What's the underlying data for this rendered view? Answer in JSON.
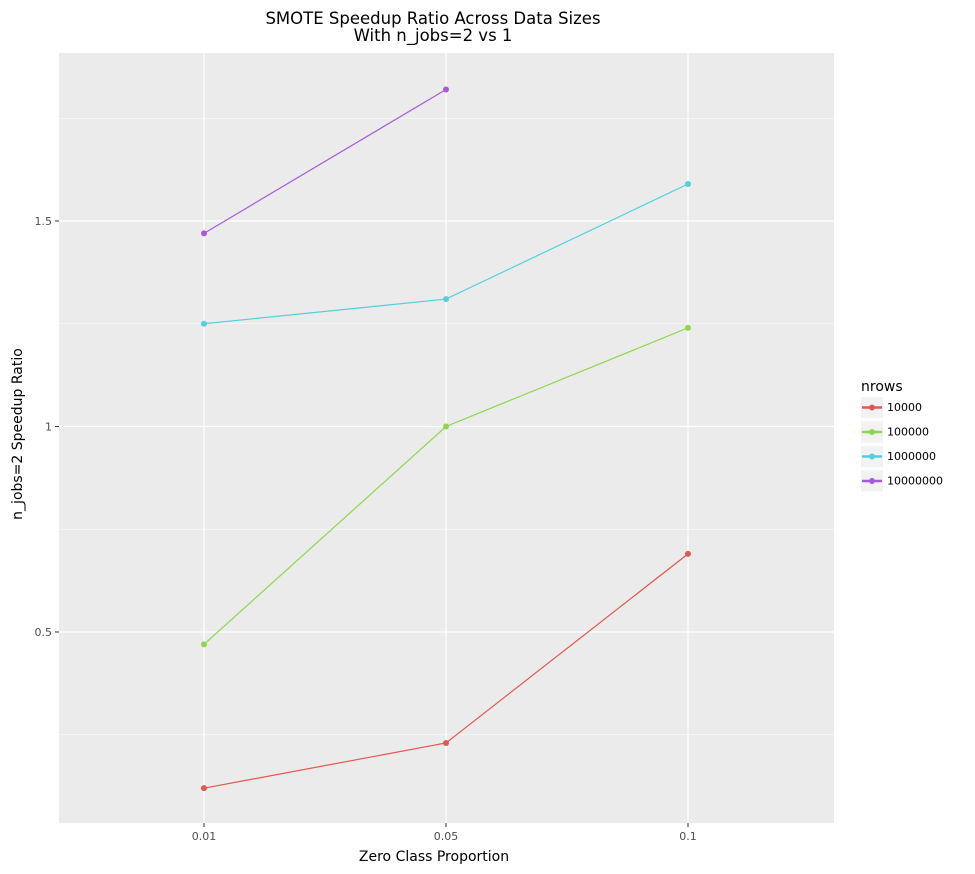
{
  "chart_data": {
    "type": "line",
    "title": "SMOTE Speedup Ratio Across Data Sizes",
    "subtitle": "With n_jobs=2 vs 1",
    "xlabel": "Zero Class Proportion",
    "ylabel": "n_jobs=2 Speedup Ratio",
    "categories": [
      "0.01",
      "0.05",
      "0.1"
    ],
    "x_ticks": [
      "0.01",
      "0.05",
      "0.1"
    ],
    "y_ticks": [
      0.5,
      1,
      1.5
    ],
    "y_tick_labels": [
      "0.5",
      "1",
      "1.5"
    ],
    "y_minor_ticks": [
      0.25,
      0.75,
      1.25,
      1.75
    ],
    "ylim": [
      0.05,
      1.92
    ],
    "grid": true,
    "legend_position": "right",
    "legend_title": "nrows",
    "series": [
      {
        "name": "10000",
        "color": "#e0584f",
        "values": [
          0.12,
          0.23,
          0.69
        ]
      },
      {
        "name": "100000",
        "color": "#8fd64f",
        "values": [
          0.47,
          1.0,
          1.24
        ]
      },
      {
        "name": "1000000",
        "color": "#52d0dc",
        "values": [
          1.25,
          1.31,
          1.59
        ]
      },
      {
        "name": "10000000",
        "color": "#a65ad8",
        "values": [
          1.47,
          1.82,
          null
        ]
      }
    ]
  },
  "colors": {
    "panel_background": "#ebebeb",
    "grid": "#ffffff",
    "legend_key_background": "#f2f2f2"
  }
}
